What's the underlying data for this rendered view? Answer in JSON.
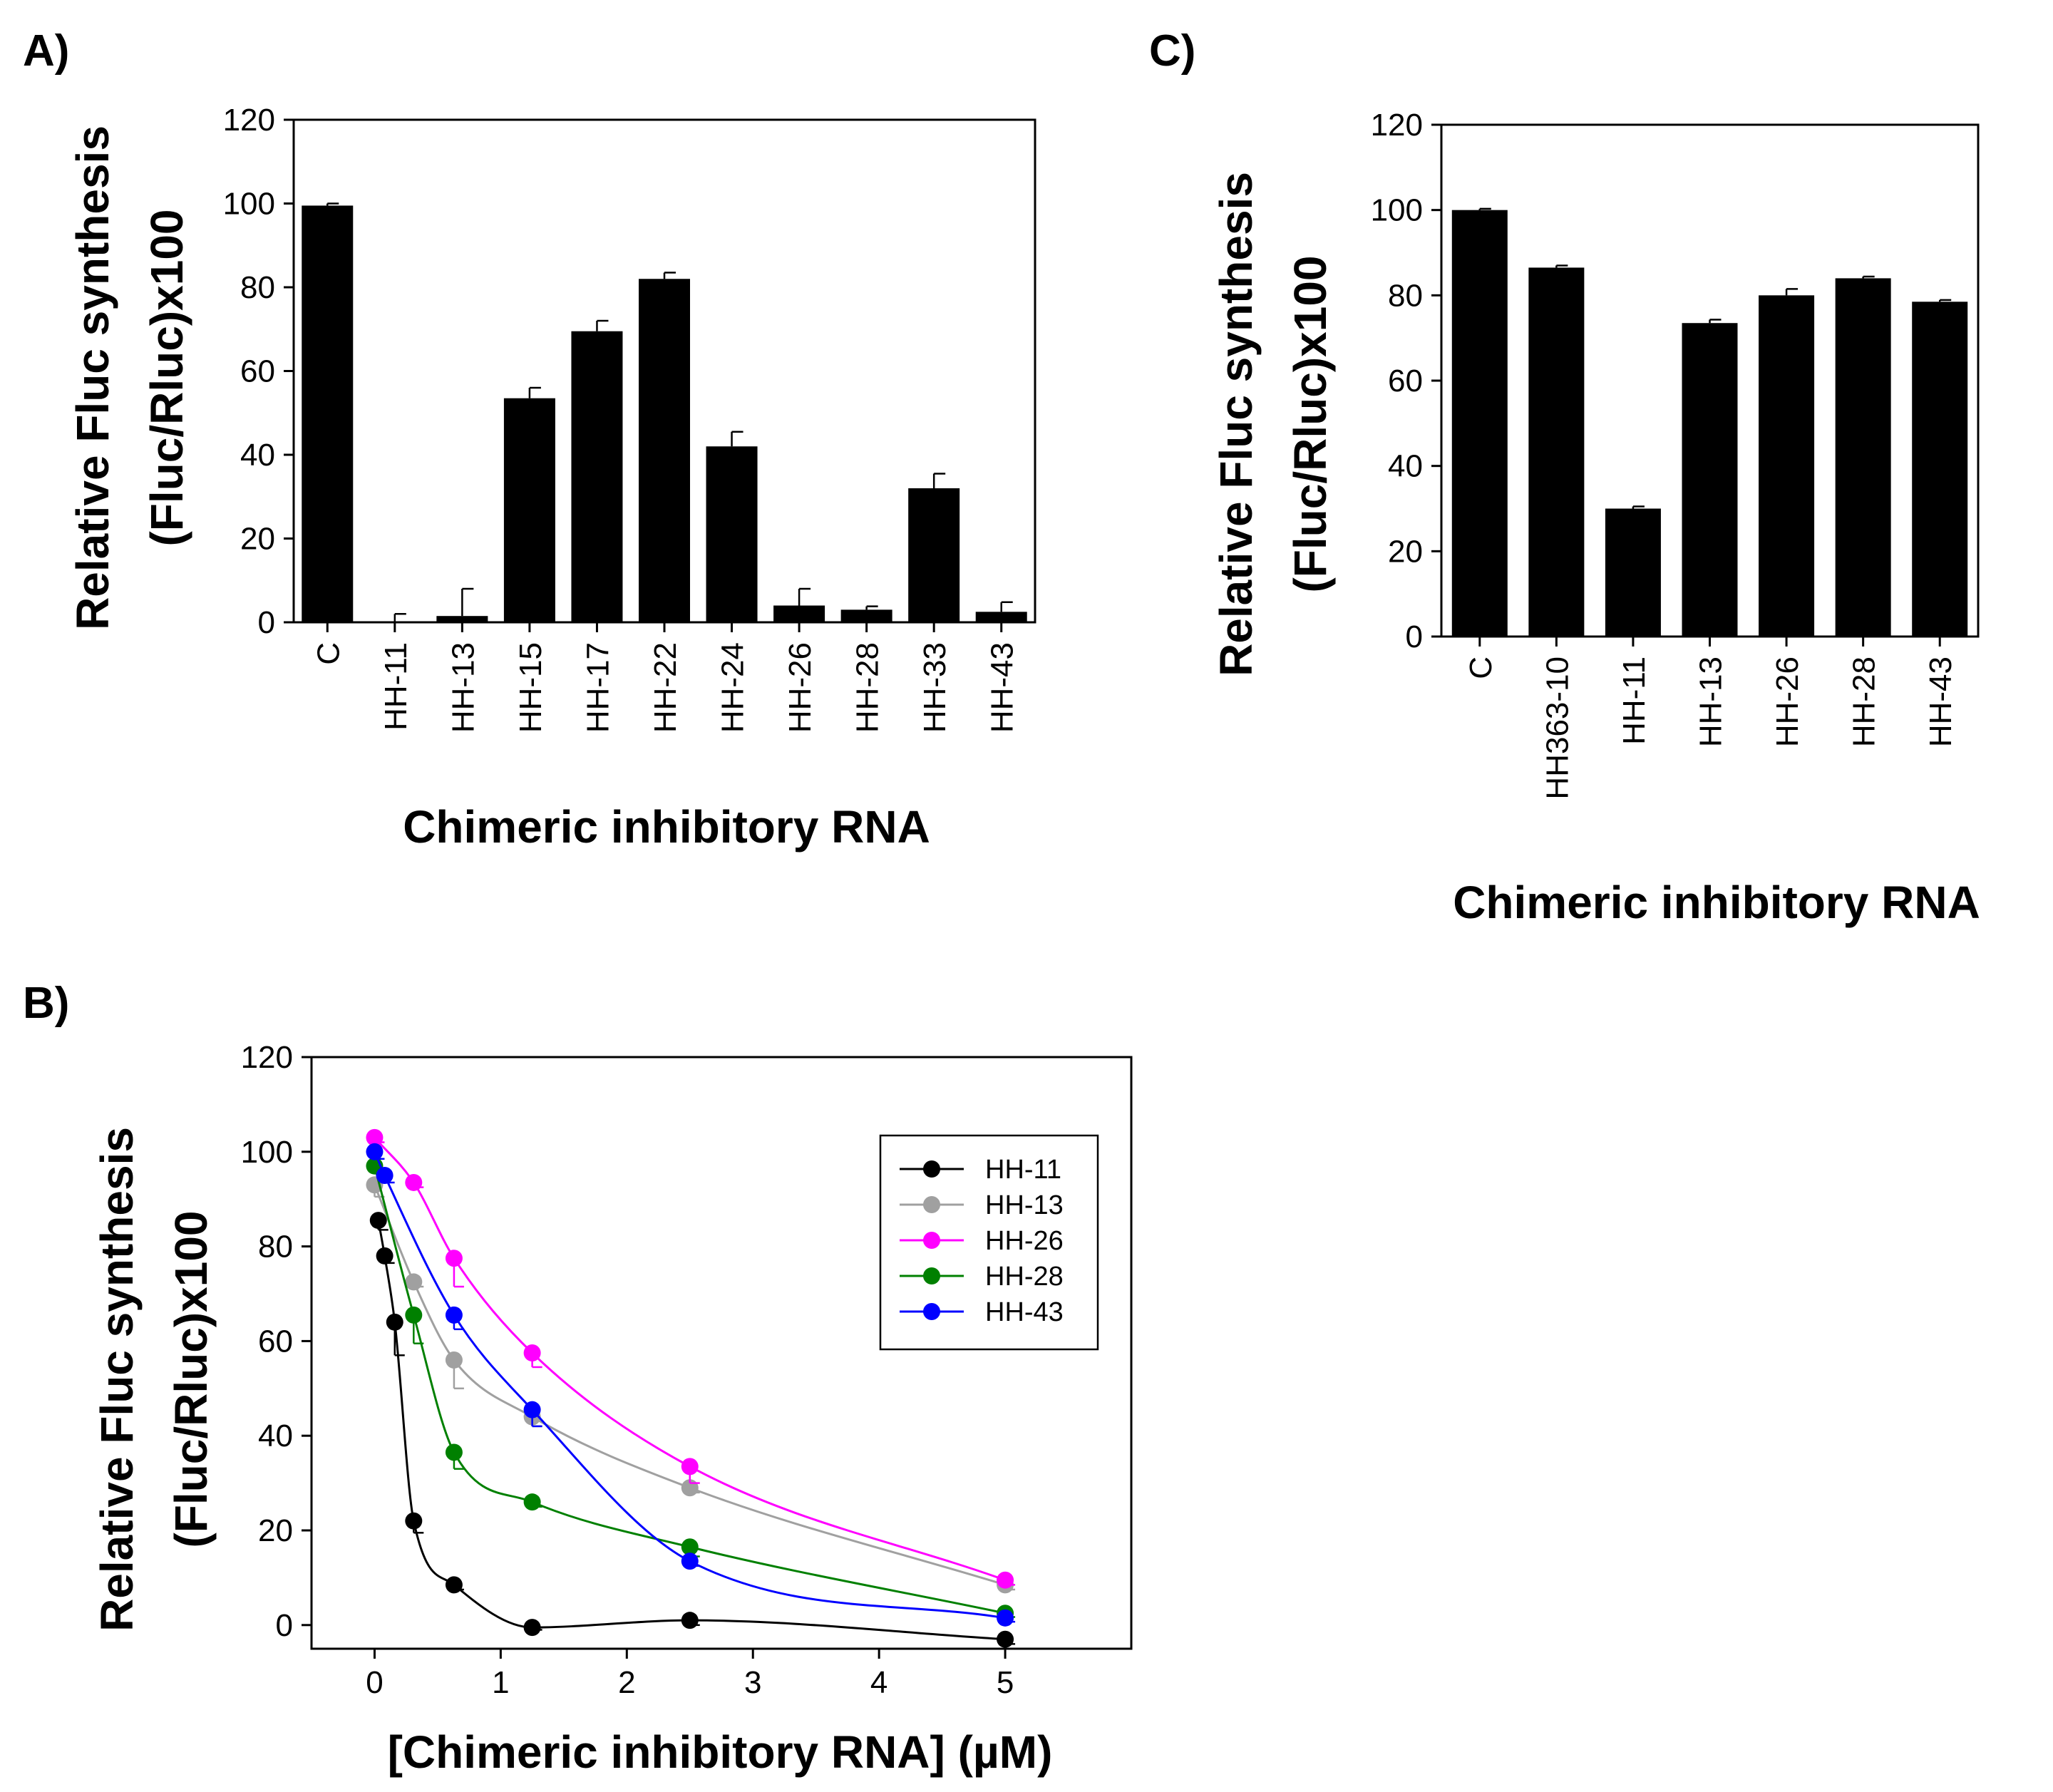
{
  "chart_data": [
    {
      "panel": "A)",
      "type": "bar",
      "xlabel": "Chimeric inhibitory RNA",
      "ylabel": [
        "Relative Fluc synthesis",
        "(Fluc/Rluc)x100"
      ],
      "ylim": [
        0,
        120
      ],
      "yticks": [
        "0",
        "20",
        "40",
        "60",
        "80",
        "100",
        "120"
      ],
      "categories": [
        "C",
        "HH-11",
        "HH-13",
        "HH-15",
        "HH-17",
        "HH-22",
        "HH-24",
        "HH-26",
        "HH-28",
        "HH-33",
        "HH-43"
      ],
      "values": [
        99.5,
        0,
        1.5,
        53.5,
        69.5,
        82,
        42,
        4,
        3,
        32,
        2.5
      ],
      "errors": [
        0.5,
        2,
        6.5,
        2.5,
        2.5,
        1.5,
        3.5,
        4,
        0.8,
        3.5,
        2.3
      ],
      "color": "#000000"
    },
    {
      "panel": "C)",
      "type": "bar",
      "xlabel": "Chimeric inhibitory RNA",
      "ylabel": [
        "Relative Fluc synthesis",
        "(Fluc/Rluc)x100"
      ],
      "ylim": [
        0,
        120
      ],
      "yticks": [
        "0",
        "20",
        "40",
        "60",
        "80",
        "100",
        "120"
      ],
      "categories": [
        "C",
        "HH363-10",
        "HH-11",
        "HH-13",
        "HH-26",
        "HH-28",
        "HH-43"
      ],
      "values": [
        100,
        86.5,
        30,
        73.5,
        80,
        84,
        78.5
      ],
      "errors": [
        0.3,
        0.5,
        0.5,
        0.8,
        1.5,
        0.4,
        0.4
      ],
      "color": "#000000"
    },
    {
      "panel": "B)",
      "type": "scatter",
      "xlabel": "[Chimeric inhibitory RNA] (µM)",
      "ylabel": [
        "Relative Fluc synthesis",
        "(Fluc/Rluc)x100"
      ],
      "xlim": [
        -0.5,
        6
      ],
      "ylim": [
        -5,
        120
      ],
      "xticks": [
        0,
        1,
        2,
        3,
        4,
        5
      ],
      "xtick_labels": [
        "0",
        "1",
        "2",
        "3",
        "4",
        "5"
      ],
      "yticks": [
        0,
        20,
        40,
        60,
        80,
        100,
        120
      ],
      "ytick_labels": [
        "0",
        "20",
        "40",
        "60",
        "80",
        "100",
        "120"
      ],
      "legend_position": "top-right",
      "series": [
        {
          "name": "HH-11",
          "color": "#000000",
          "x": [
            0.03,
            0.08,
            0.16,
            0.31,
            0.63,
            1.25,
            2.5,
            5
          ],
          "y": [
            85.5,
            78,
            64,
            22,
            8.5,
            -0.5,
            1,
            -3
          ],
          "err": [
            2,
            1.5,
            7,
            2.5,
            1,
            0.5,
            1,
            1
          ]
        },
        {
          "name": "HH-13",
          "color": "#a0a0a0",
          "x": [
            0,
            0.31,
            0.63,
            1.25,
            2.5,
            5
          ],
          "y": [
            93,
            72.5,
            56,
            44,
            29,
            8.5
          ],
          "err": [
            2.5,
            1,
            6,
            2,
            1,
            1
          ]
        },
        {
          "name": "HH-26",
          "color": "#ff00ff",
          "x": [
            0,
            0.31,
            0.63,
            1.25,
            2.5,
            5
          ],
          "y": [
            103,
            93.5,
            77.5,
            57.5,
            33.5,
            9.5
          ],
          "err": [
            1,
            1,
            6,
            3,
            3.5,
            1
          ]
        },
        {
          "name": "HH-28",
          "color": "#008000",
          "x": [
            0,
            0.31,
            0.63,
            1.25,
            2.5,
            5
          ],
          "y": [
            97,
            65.5,
            36.5,
            26,
            16.5,
            2.5
          ],
          "err": [
            1.5,
            6,
            3.5,
            1,
            2,
            0.8
          ]
        },
        {
          "name": "HH-43",
          "color": "#0000ff",
          "x": [
            0,
            0.08,
            0.63,
            1.25,
            2.5,
            5
          ],
          "y": [
            100,
            95,
            65.5,
            45.5,
            13.5,
            1.5
          ],
          "err": [
            1.5,
            1.5,
            3,
            3.5,
            1,
            0.8
          ]
        }
      ]
    }
  ]
}
